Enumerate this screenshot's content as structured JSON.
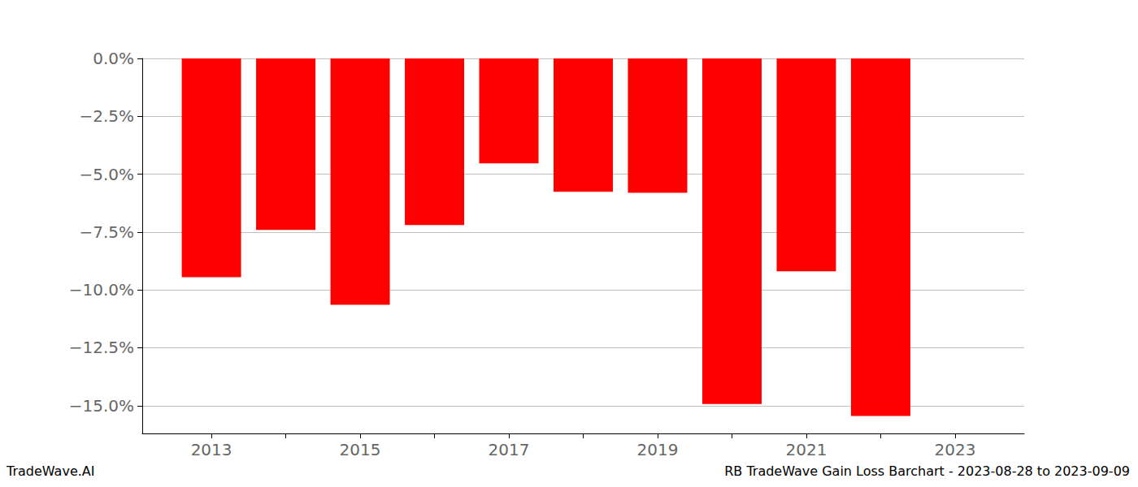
{
  "chart_data": {
    "type": "bar",
    "title": "RB TradeWave Gain Loss Barchart - 2023-08-28 to 2023-09-09",
    "subtitle": "TradeWave.AI",
    "x": [
      2013,
      2014,
      2015,
      2016,
      2017,
      2018,
      2019,
      2020,
      2021,
      2022
    ],
    "values": [
      -9.45,
      -7.41,
      -10.64,
      -7.2,
      -4.53,
      -5.76,
      -5.8,
      -14.93,
      -9.2,
      -15.45
    ],
    "color": "#ff0000",
    "xlim": [
      2012.07,
      2023.93
    ],
    "xticks": [
      2013,
      2015,
      2017,
      2019,
      2021,
      2023
    ],
    "ylim": [
      -16.2,
      0
    ],
    "yticks": [
      {
        "value": 0,
        "label": "0.0%"
      },
      {
        "value": -2.5,
        "label": "−2.5%"
      },
      {
        "value": -5,
        "label": "−5.0%"
      },
      {
        "value": -7.5,
        "label": "−7.5%"
      },
      {
        "value": -10,
        "label": "−10.0%"
      },
      {
        "value": -12.5,
        "label": "−12.5%"
      },
      {
        "value": -15,
        "label": "−15.0%"
      }
    ],
    "grid": true
  }
}
